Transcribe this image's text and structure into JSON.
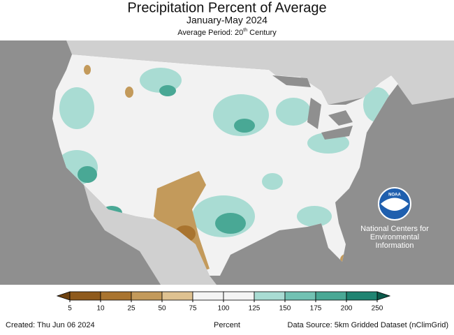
{
  "header": {
    "title": "Precipitation Percent of Average",
    "subtitle": "January-May 2024",
    "period": {
      "prefix": "Average Period: 20",
      "sup": "th",
      "suffix": " Century"
    }
  },
  "legend": {
    "ticks": [
      5,
      10,
      25,
      50,
      75,
      100,
      125,
      150,
      175,
      200,
      250
    ],
    "colors": [
      "#8f5a1c",
      "#a9742f",
      "#c39a5b",
      "#dfc291",
      "#f4f4f4",
      "#f4f4f4",
      "#a9dcd3",
      "#72c2b3",
      "#49a895",
      "#1f8472"
    ],
    "under_color": "#6e4210",
    "over_color": "#0b5a4b",
    "label": "Percent"
  },
  "logo": {
    "name": "NOAA",
    "org_lines": [
      "National Centers for",
      "Environmental",
      "Information"
    ]
  },
  "footer": {
    "created": "Created: Thu Jun 06 2024",
    "source": "Data Source: 5km Gridded Dataset (nClimGrid)"
  }
}
